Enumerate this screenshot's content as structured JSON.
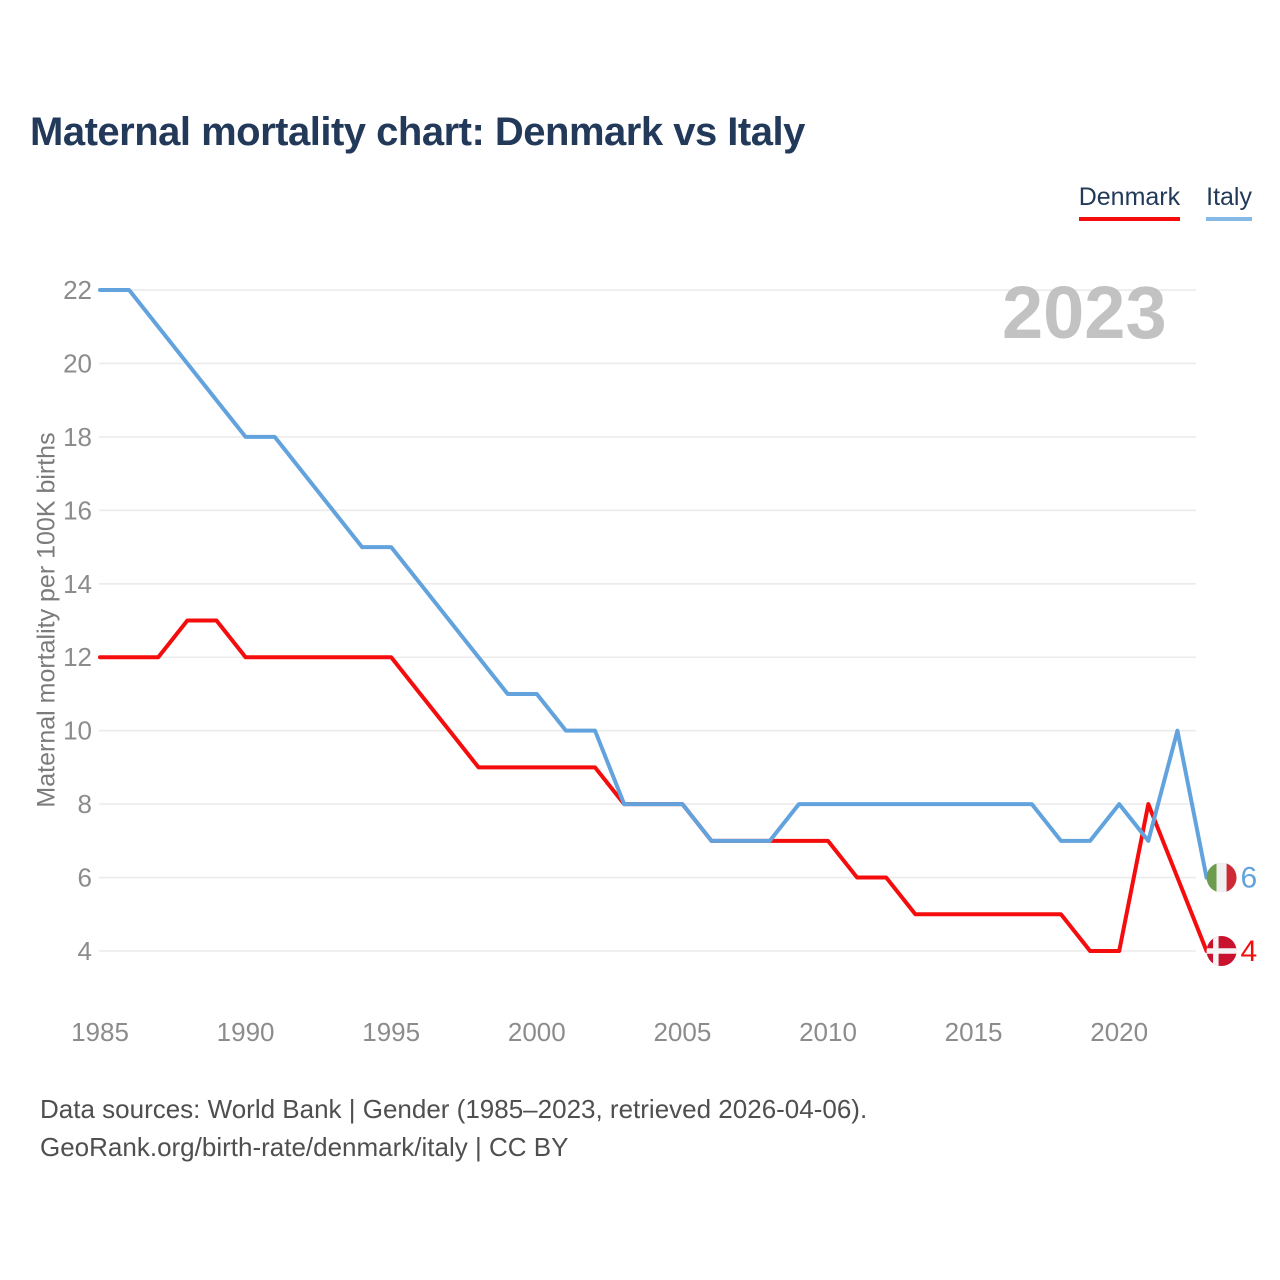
{
  "title": "Maternal mortality chart: Denmark vs Italy",
  "watermark": "2023",
  "legend": {
    "items": [
      {
        "label": "Denmark",
        "color": "#f50d0d"
      },
      {
        "label": "Italy",
        "color": "#85b9e6"
      }
    ]
  },
  "footer": {
    "line1": "Data sources: World Bank | Gender (1985–2023, retrieved 2026-04-06).",
    "line2": "GeoRank.org/birth-rate/denmark/italy | CC BY"
  },
  "chart_data": {
    "type": "line",
    "title": "Maternal mortality chart: Denmark vs Italy",
    "xlabel": "",
    "ylabel": "Maternal mortality per 100K births",
    "x": [
      1985,
      1986,
      1987,
      1988,
      1989,
      1990,
      1991,
      1992,
      1993,
      1994,
      1995,
      1996,
      1997,
      1998,
      1999,
      2000,
      2001,
      2002,
      2003,
      2004,
      2005,
      2006,
      2007,
      2008,
      2009,
      2010,
      2011,
      2012,
      2013,
      2014,
      2015,
      2016,
      2017,
      2018,
      2019,
      2020,
      2021,
      2022,
      2023
    ],
    "series": [
      {
        "name": "Denmark",
        "color": "#f50d0d",
        "flag": "denmark-flag",
        "end_value_label": "4",
        "values": [
          12,
          12,
          12,
          13,
          13,
          12,
          12,
          12,
          12,
          12,
          12,
          11,
          10,
          9,
          9,
          9,
          9,
          9,
          8,
          8,
          8,
          7,
          7,
          7,
          7,
          7,
          6,
          6,
          5,
          5,
          5,
          5,
          5,
          5,
          4,
          4,
          8,
          6,
          4
        ]
      },
      {
        "name": "Italy",
        "color": "#63a3dd",
        "flag": "italy-flag",
        "end_value_label": "6",
        "values": [
          22,
          22,
          21,
          20,
          19,
          18,
          18,
          17,
          16,
          15,
          15,
          14,
          13,
          12,
          11,
          11,
          10,
          10,
          8,
          8,
          8,
          7,
          7,
          7,
          8,
          8,
          8,
          8,
          8,
          8,
          8,
          8,
          8,
          7,
          7,
          8,
          7,
          10,
          6
        ]
      }
    ],
    "xticks": [
      1985,
      1990,
      1995,
      2000,
      2005,
      2010,
      2015,
      2020
    ],
    "yticks": [
      4,
      6,
      8,
      10,
      12,
      14,
      16,
      18,
      20,
      22
    ],
    "xlim": [
      1985,
      2023
    ],
    "ylim": [
      4,
      22
    ],
    "grid": "horizontal",
    "legend_position": "top-right"
  }
}
